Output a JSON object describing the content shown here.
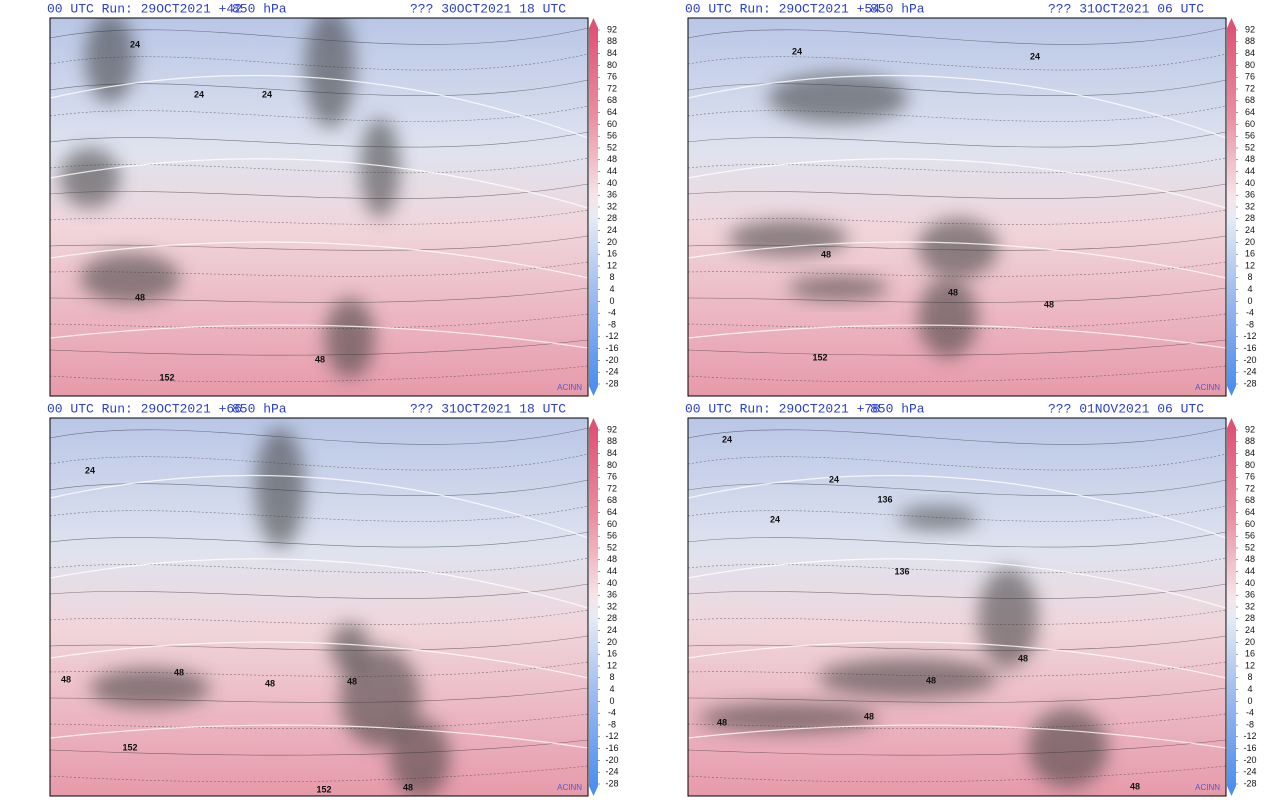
{
  "panels": [
    {
      "header": {
        "run": "00 UTC Run: 29OCT2021 +42",
        "level": "850 hPa",
        "valid": "??? 30OCT2021 18 UTC"
      },
      "contour_labels": [
        "24",
        "24",
        "24",
        "48",
        "48",
        "152"
      ],
      "credit": "ACINN"
    },
    {
      "header": {
        "run": "00 UTC Run: 29OCT2021 +54",
        "level": "850 hPa",
        "valid": "??? 31OCT2021 06 UTC"
      },
      "contour_labels": [
        "24",
        "24",
        "48",
        "48",
        "48",
        "152"
      ],
      "credit": "ACINN"
    },
    {
      "header": {
        "run": "00 UTC Run: 29OCT2021 +66",
        "level": "850 hPa",
        "valid": "??? 31OCT2021 18 UTC"
      },
      "contour_labels": [
        "24",
        "48",
        "48",
        "48",
        "48",
        "48",
        "152",
        "152"
      ],
      "credit": "ACINN"
    },
    {
      "header": {
        "run": "00 UTC Run: 29OCT2021 +78",
        "level": "850 hPa",
        "valid": "??? 01NOV2021 06 UTC"
      },
      "contour_labels": [
        "24",
        "24",
        "24",
        "136",
        "136",
        "48",
        "48",
        "48",
        "48",
        "48"
      ],
      "credit": "ACINN"
    }
  ],
  "colorbar": {
    "ticks": [
      92,
      88,
      84,
      80,
      76,
      72,
      68,
      64,
      60,
      56,
      52,
      48,
      44,
      40,
      36,
      32,
      28,
      24,
      20,
      16,
      12,
      8,
      4,
      0,
      -4,
      -8,
      -12,
      -16,
      -20,
      -24,
      -28
    ]
  }
}
